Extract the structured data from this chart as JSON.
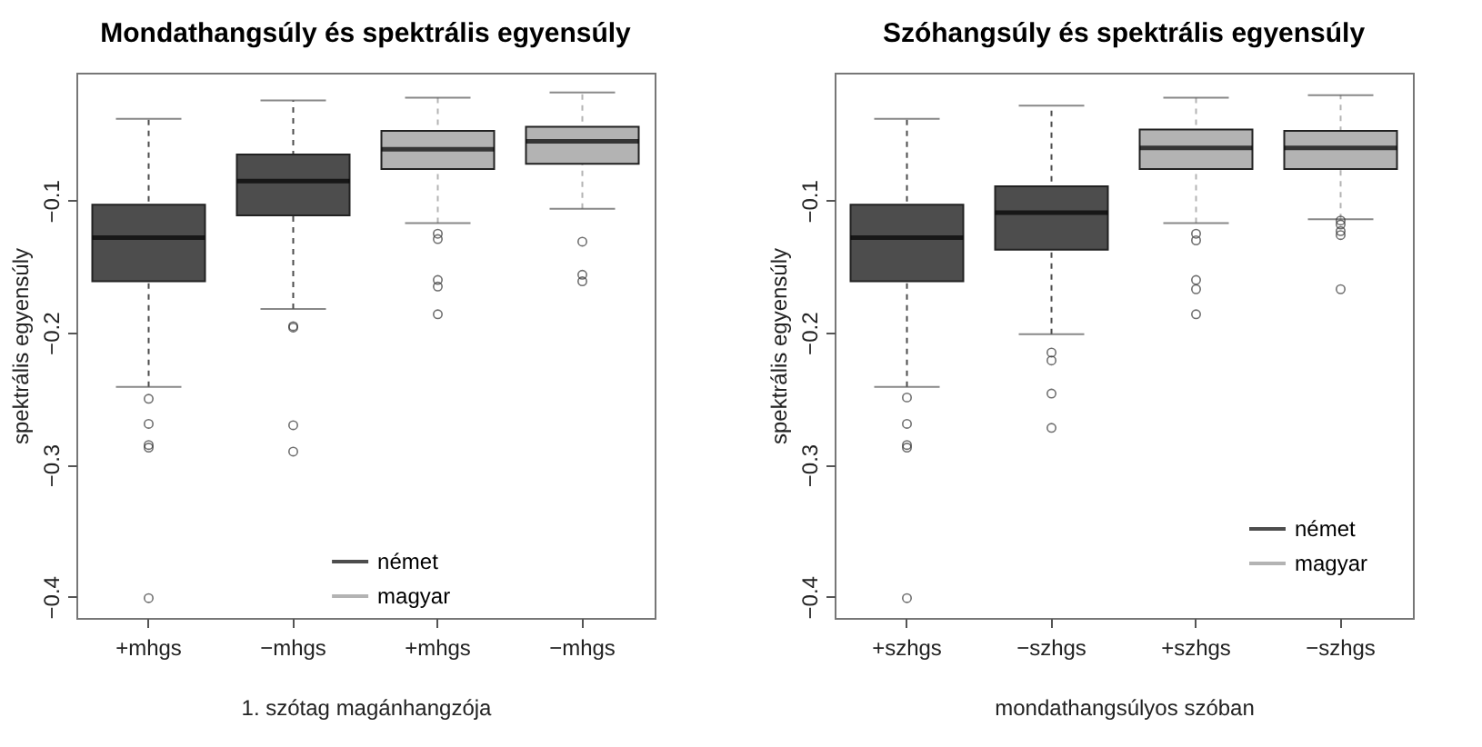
{
  "chart_data": [
    {
      "type": "box",
      "title": "Mondathangsúly és spektrális egyensúly",
      "xlabel": "1. szótag magánhangzója",
      "ylabel": "spektrális egyensúly",
      "categories": [
        "+mhgs",
        "−mhgs",
        "+mhgs",
        "−mhgs"
      ],
      "ylim": [
        -0.416,
        -0.003
      ],
      "yticks": [
        {
          "value": -0.4,
          "label": "−0.4"
        },
        {
          "value": -0.3,
          "label": "−0.3"
        },
        {
          "value": -0.2,
          "label": "−0.2"
        },
        {
          "value": -0.1,
          "label": "−0.1"
        }
      ],
      "legend": "bottom",
      "series": [
        {
          "name": "német",
          "color": "#4d4d4d",
          "boxes": [
            {
              "low": -0.241,
              "q1": -0.161,
              "median": -0.128,
              "q3": -0.103,
              "high": -0.038,
              "outliers": [
                -0.25,
                -0.269,
                -0.285,
                -0.287,
                -0.401
              ]
            },
            {
              "low": -0.182,
              "q1": -0.111,
              "median": -0.085,
              "q3": -0.065,
              "high": -0.024,
              "outliers": [
                -0.195,
                -0.196,
                -0.27,
                -0.29
              ]
            },
            null,
            null
          ]
        },
        {
          "name": "magyar",
          "color": "#b3b3b3",
          "boxes": [
            null,
            null,
            {
              "low": -0.117,
              "q1": -0.076,
              "median": -0.061,
              "q3": -0.047,
              "high": -0.022,
              "outliers": [
                -0.125,
                -0.129,
                -0.16,
                -0.165,
                -0.186
              ]
            },
            {
              "low": -0.106,
              "q1": -0.072,
              "median": -0.055,
              "q3": -0.044,
              "high": -0.018,
              "outliers": [
                -0.131,
                -0.156,
                -0.161
              ]
            }
          ]
        }
      ]
    },
    {
      "type": "box",
      "title": "Szóhangsúly és spektrális egyensúly",
      "xlabel": "mondathangsúlyos szóban",
      "ylabel": "spektrális egyensúly",
      "categories": [
        "+szhgs",
        "−szhgs",
        "+szhgs",
        "−szhgs"
      ],
      "ylim": [
        -0.416,
        -0.003
      ],
      "yticks": [
        {
          "value": -0.4,
          "label": "−0.4"
        },
        {
          "value": -0.3,
          "label": "−0.3"
        },
        {
          "value": -0.2,
          "label": "−0.2"
        },
        {
          "value": -0.1,
          "label": "−0.1"
        }
      ],
      "legend": "bottom right",
      "series": [
        {
          "name": "német",
          "color": "#4d4d4d",
          "boxes": [
            {
              "low": -0.241,
              "q1": -0.161,
              "median": -0.128,
              "q3": -0.103,
              "high": -0.038,
              "outliers": [
                -0.249,
                -0.269,
                -0.285,
                -0.287,
                -0.401
              ]
            },
            {
              "low": -0.201,
              "q1": -0.137,
              "median": -0.109,
              "q3": -0.089,
              "high": -0.028,
              "outliers": [
                -0.215,
                -0.221,
                -0.246,
                -0.272
              ]
            },
            null,
            null
          ]
        },
        {
          "name": "magyar",
          "color": "#b3b3b3",
          "boxes": [
            null,
            null,
            {
              "low": -0.117,
              "q1": -0.076,
              "median": -0.06,
              "q3": -0.046,
              "high": -0.022,
              "outliers": [
                -0.125,
                -0.13,
                -0.16,
                -0.167,
                -0.186
              ]
            },
            {
              "low": -0.114,
              "q1": -0.076,
              "median": -0.06,
              "q3": -0.047,
              "high": -0.02,
              "outliers": [
                -0.115,
                -0.118,
                -0.123,
                -0.126,
                -0.167
              ]
            }
          ]
        }
      ]
    }
  ]
}
